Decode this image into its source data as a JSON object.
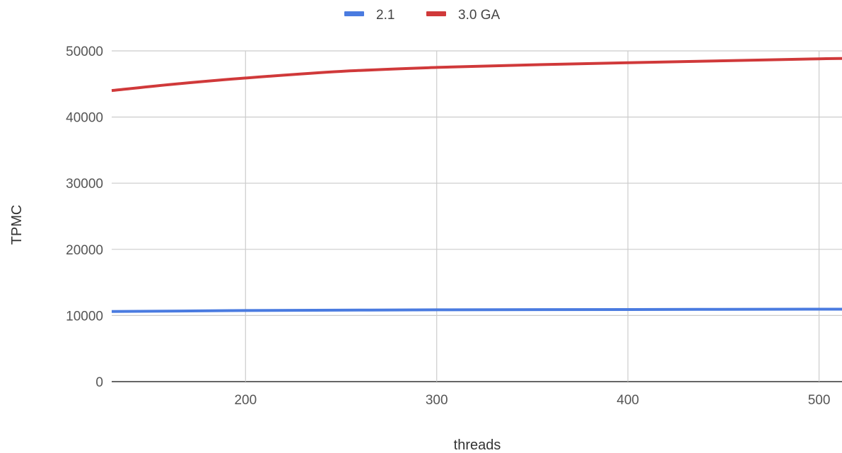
{
  "chart_data": {
    "type": "line",
    "xlabel": "threads",
    "ylabel": "TPMC",
    "xlim": [
      130,
      512
    ],
    "ylim": [
      0,
      50000
    ],
    "x_ticks": [
      "200",
      "300",
      "400",
      "500"
    ],
    "y_ticks": [
      "0",
      "10000",
      "20000",
      "30000",
      "40000",
      "50000"
    ],
    "grid": true,
    "legend_position": "top-center",
    "series": [
      {
        "name": "2.1",
        "color": "#4a7be0",
        "points": [
          [
            130,
            10600
          ],
          [
            200,
            10750
          ],
          [
            300,
            10850
          ],
          [
            400,
            10900
          ],
          [
            500,
            10950
          ],
          [
            512,
            10950
          ]
        ]
      },
      {
        "name": "3.0 GA",
        "color": "#d0393a",
        "points": [
          [
            130,
            44000
          ],
          [
            160,
            44900
          ],
          [
            200,
            45900
          ],
          [
            250,
            46900
          ],
          [
            300,
            47500
          ],
          [
            350,
            47900
          ],
          [
            400,
            48200
          ],
          [
            450,
            48500
          ],
          [
            500,
            48800
          ],
          [
            512,
            48850
          ]
        ]
      }
    ]
  }
}
